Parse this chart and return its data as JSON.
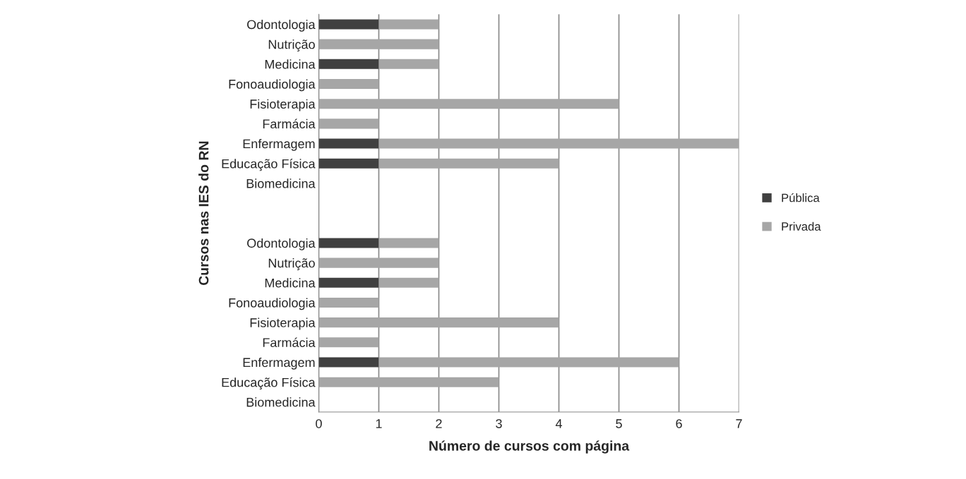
{
  "chart_data": {
    "type": "bar",
    "orientation": "horizontal",
    "stacked": true,
    "xlabel": "Número de cursos com página",
    "ylabel": "Cursos nas IES do RN",
    "categories": [
      "Odontologia",
      "Nutrição",
      "Medicina",
      "Fonoaudiologia",
      "Fisioterapia",
      "Farmácia",
      "Enfermagem",
      "Educação Física",
      "Biomedicina",
      null,
      null,
      "Odontologia",
      "Nutrição",
      "Medicina",
      "Fonoaudiologia",
      "Fisioterapia",
      "Farmácia",
      "Enfermagem",
      "Educação Física",
      "Biomedicina"
    ],
    "series": [
      {
        "name": "Pública",
        "color": "#404040",
        "values": [
          1,
          0,
          1,
          0,
          0,
          0,
          1,
          1,
          0,
          null,
          null,
          1,
          0,
          1,
          0,
          0,
          0,
          1,
          0,
          0
        ]
      },
      {
        "name": "Privada",
        "color": "#a6a6a6",
        "values": [
          1,
          2,
          1,
          1,
          5,
          1,
          6,
          3,
          0,
          null,
          null,
          1,
          2,
          1,
          1,
          4,
          1,
          5,
          3,
          0
        ]
      }
    ],
    "xlim": [
      0,
      7
    ],
    "xticks": [
      0,
      1,
      2,
      3,
      4,
      5,
      6,
      7
    ],
    "grid": "x",
    "legend": "right"
  }
}
